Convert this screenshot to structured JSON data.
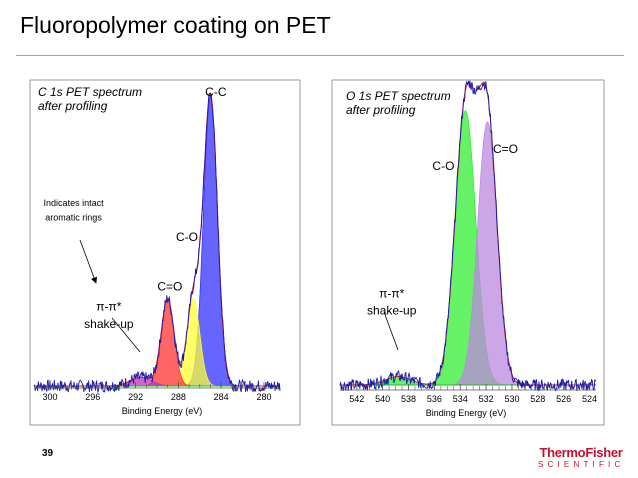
{
  "slide": {
    "title": "Fluoropolymer coating on PET",
    "slide_number": "39",
    "logo_line1": "ThermoFisher",
    "logo_line2": "SCIENTIFIC",
    "accent_color": "#c8102e"
  },
  "chart_data": [
    {
      "type": "area",
      "title": "C 1s PET spectrum\nafter profiling",
      "xlabel": "Binding Energy (eV)",
      "ylabel": "",
      "x_reversed": true,
      "xlim": [
        301.5,
        278.5
      ],
      "xticks": [
        300,
        296,
        292,
        288,
        284,
        280
      ],
      "ylim": [
        0,
        100
      ],
      "grid": false,
      "series": [
        {
          "name": "C-C",
          "color": "#3333ff",
          "center": 285.0,
          "height": 100,
          "width": 0.65
        },
        {
          "name": "C-O",
          "color": "#ffff33",
          "center": 286.6,
          "height": 30,
          "width": 0.6
        },
        {
          "name": "C=O",
          "color": "#ff3333",
          "center": 289.0,
          "height": 30,
          "width": 0.6
        },
        {
          "name": "π-π* shake-up",
          "color": "#bb33bb",
          "center": 291.5,
          "height": 3,
          "width": 1.0
        }
      ],
      "annotations": [
        {
          "text": "C-C",
          "x": 284.5,
          "y": 100
        },
        {
          "text": "C-O",
          "x": 287.2,
          "y": 50
        },
        {
          "text": "C=O",
          "x": 288.8,
          "y": 33
        },
        {
          "text": "π-π*",
          "x": 294.5,
          "y": 26
        },
        {
          "text": "shake-up",
          "x": 294.5,
          "y": 20
        },
        {
          "text": "Indicates intact",
          "x": 297.8,
          "y": 62
        },
        {
          "text": "aromatic rings",
          "x": 297.8,
          "y": 57
        }
      ]
    },
    {
      "type": "area",
      "title": "O 1s PET spectrum\nafter profiling",
      "xlabel": "Binding Energy (eV)",
      "ylabel": "",
      "x_reversed": true,
      "xlim": [
        543.3,
        523.5
      ],
      "xticks": [
        542,
        540,
        538,
        536,
        534,
        532,
        530,
        528,
        526,
        524
      ],
      "ylim": [
        0,
        100
      ],
      "grid": false,
      "series": [
        {
          "name": "C-O",
          "color": "#33ee33",
          "center": 533.6,
          "height": 97,
          "width": 0.8
        },
        {
          "name": "C=O",
          "color": "#bb88dd",
          "center": 531.9,
          "height": 93,
          "width": 0.75
        },
        {
          "name": "π-π* shake-up",
          "color": "#33ee33",
          "center": 538.8,
          "height": 3,
          "width": 1.0
        }
      ],
      "annotations": [
        {
          "text": "C=O",
          "x": 530.5,
          "y": 82
        },
        {
          "text": "C-O",
          "x": 535.3,
          "y": 76
        },
        {
          "text": "π-π*",
          "x": 539.3,
          "y": 31
        },
        {
          "text": "shake-up",
          "x": 539.3,
          "y": 25
        }
      ]
    }
  ]
}
